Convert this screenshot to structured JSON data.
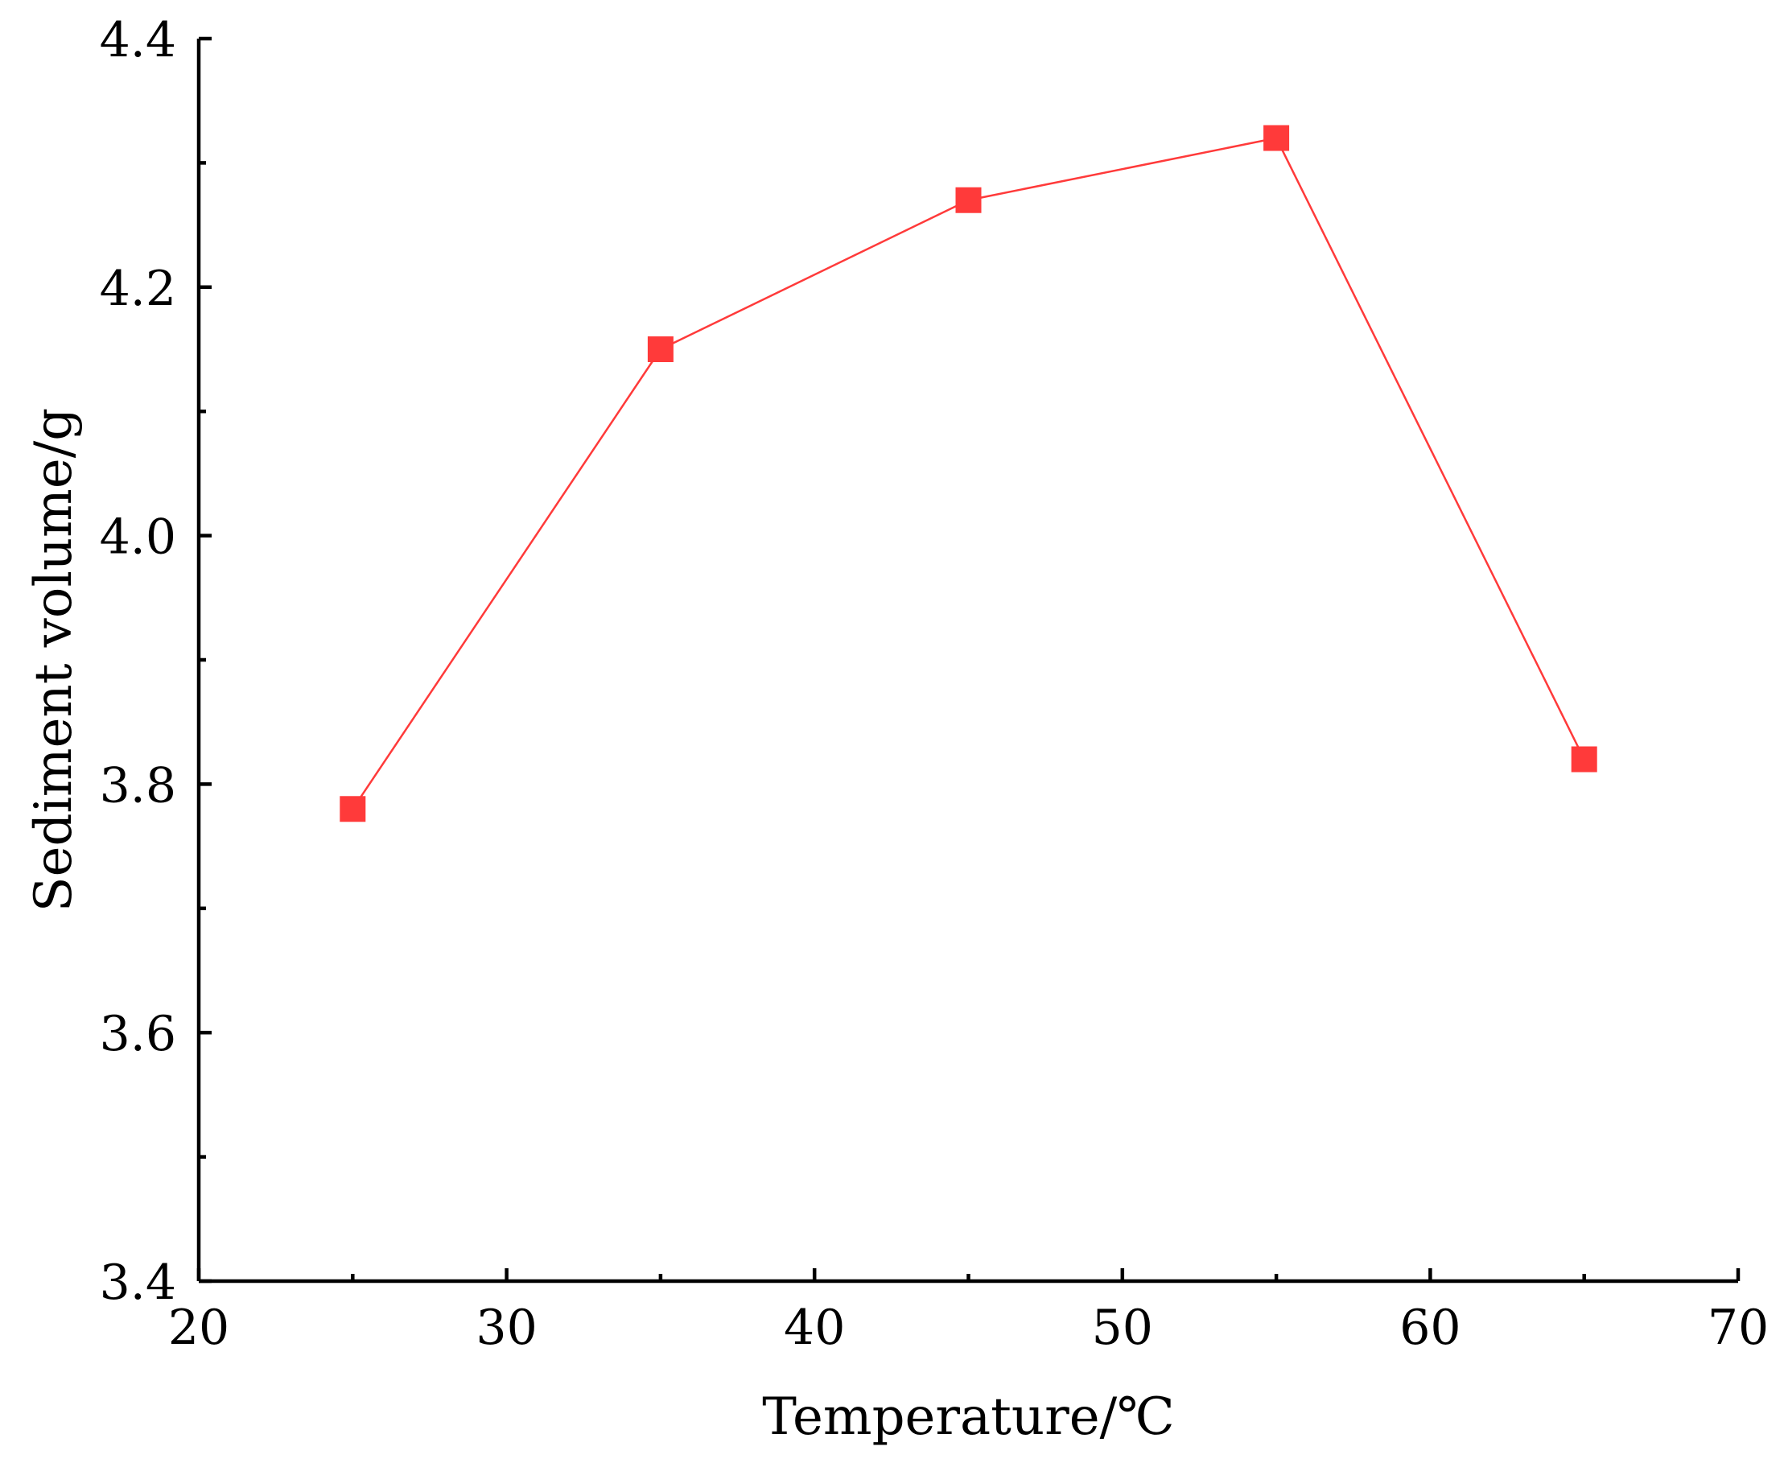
{
  "chart_data": {
    "type": "line",
    "title": "",
    "xlabel": "Temperature/℃",
    "ylabel": "Sediment volume/g",
    "xlim": [
      20,
      70
    ],
    "ylim": [
      3.4,
      4.4
    ],
    "x_ticks": [
      20,
      30,
      40,
      50,
      60,
      70
    ],
    "x_tick_labels": [
      "20",
      "30",
      "40",
      "50",
      "60",
      "70"
    ],
    "x_minor_ticks": [
      25,
      35,
      45,
      55,
      65
    ],
    "y_ticks": [
      3.4,
      3.6,
      3.8,
      4.0,
      4.2,
      4.4
    ],
    "y_tick_labels": [
      "3.4",
      "3.6",
      "3.8",
      "4.0",
      "4.2",
      "4.4"
    ],
    "y_minor_ticks": [
      3.5,
      3.7,
      3.9,
      4.1,
      4.3
    ],
    "grid": false,
    "legend": "none",
    "series": [
      {
        "color": "#ff3a3a",
        "marker": "square",
        "x": [
          25,
          35,
          45,
          55,
          65
        ],
        "y": [
          3.78,
          4.15,
          4.27,
          4.32,
          3.82
        ]
      }
    ]
  }
}
